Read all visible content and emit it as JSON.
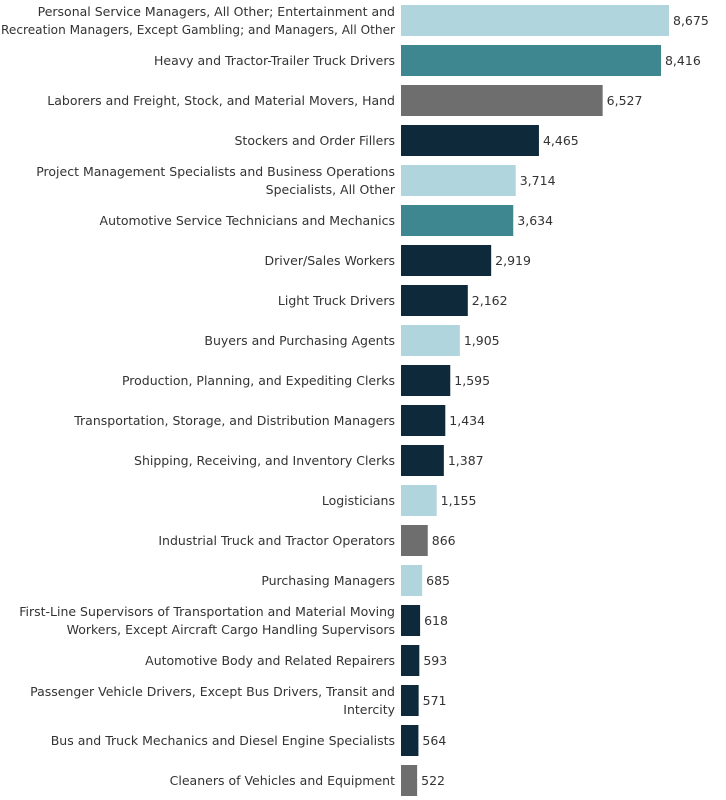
{
  "chart_data": {
    "type": "bar",
    "orientation": "horizontal",
    "title": "",
    "xlabel": "",
    "ylabel": "",
    "xlim": [
      0,
      8675
    ],
    "grid": false,
    "legend": "none",
    "colors": {
      "light_blue": "#b1d5dc",
      "teal": "#3e8790",
      "gray": "#6e6e6e",
      "dark_navy": "#0e2a3a"
    },
    "bars": [
      {
        "category_lines": [
          "Personal Service Managers, All Other; Entertainment and",
          "Recreation Managers, Except Gambling; and Managers, All Other"
        ],
        "value": 8675,
        "value_label": "8,675",
        "color_key": "light_blue"
      },
      {
        "category_lines": [
          "Heavy and Tractor-Trailer Truck Drivers"
        ],
        "value": 8416,
        "value_label": "8,416",
        "color_key": "teal"
      },
      {
        "category_lines": [
          "Laborers and Freight, Stock, and Material Movers, Hand"
        ],
        "value": 6527,
        "value_label": "6,527",
        "color_key": "gray"
      },
      {
        "category_lines": [
          "Stockers and Order Fillers"
        ],
        "value": 4465,
        "value_label": "4,465",
        "color_key": "dark_navy"
      },
      {
        "category_lines": [
          "Project Management Specialists and Business Operations",
          "Specialists, All Other"
        ],
        "value": 3714,
        "value_label": "3,714",
        "color_key": "light_blue"
      },
      {
        "category_lines": [
          "Automotive Service Technicians and Mechanics"
        ],
        "value": 3634,
        "value_label": "3,634",
        "color_key": "teal"
      },
      {
        "category_lines": [
          "Driver/Sales Workers"
        ],
        "value": 2919,
        "value_label": "2,919",
        "color_key": "dark_navy"
      },
      {
        "category_lines": [
          "Light Truck Drivers"
        ],
        "value": 2162,
        "value_label": "2,162",
        "color_key": "dark_navy"
      },
      {
        "category_lines": [
          "Buyers and Purchasing Agents"
        ],
        "value": 1905,
        "value_label": "1,905",
        "color_key": "light_blue"
      },
      {
        "category_lines": [
          "Production, Planning, and Expediting Clerks"
        ],
        "value": 1595,
        "value_label": "1,595",
        "color_key": "dark_navy"
      },
      {
        "category_lines": [
          "Transportation, Storage, and Distribution Managers"
        ],
        "value": 1434,
        "value_label": "1,434",
        "color_key": "dark_navy"
      },
      {
        "category_lines": [
          "Shipping, Receiving, and Inventory Clerks"
        ],
        "value": 1387,
        "value_label": "1,387",
        "color_key": "dark_navy"
      },
      {
        "category_lines": [
          "Logisticians"
        ],
        "value": 1155,
        "value_label": "1,155",
        "color_key": "light_blue"
      },
      {
        "category_lines": [
          "Industrial Truck and Tractor Operators"
        ],
        "value": 866,
        "value_label": "866",
        "color_key": "gray"
      },
      {
        "category_lines": [
          "Purchasing Managers"
        ],
        "value": 685,
        "value_label": "685",
        "color_key": "light_blue"
      },
      {
        "category_lines": [
          "First-Line Supervisors of Transportation and Material Moving",
          "Workers, Except Aircraft Cargo Handling Supervisors"
        ],
        "value": 618,
        "value_label": "618",
        "color_key": "dark_navy"
      },
      {
        "category_lines": [
          "Automotive Body and Related Repairers"
        ],
        "value": 593,
        "value_label": "593",
        "color_key": "dark_navy"
      },
      {
        "category_lines": [
          "Passenger Vehicle Drivers, Except Bus Drivers, Transit and",
          "Intercity"
        ],
        "value": 571,
        "value_label": "571",
        "color_key": "dark_navy"
      },
      {
        "category_lines": [
          "Bus and Truck Mechanics and Diesel Engine Specialists"
        ],
        "value": 564,
        "value_label": "564",
        "color_key": "dark_navy"
      },
      {
        "category_lines": [
          "Cleaners of Vehicles and Equipment"
        ],
        "value": 522,
        "value_label": "522",
        "color_key": "gray"
      }
    ]
  }
}
